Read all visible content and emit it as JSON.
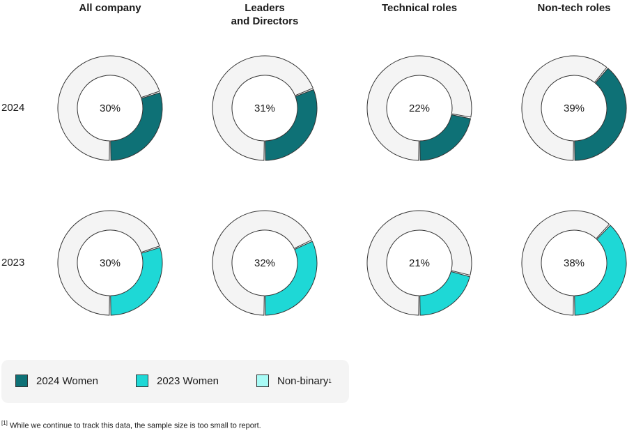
{
  "chart_data": {
    "type": "donut",
    "columns": [
      "All company",
      "Leaders\nand Directors",
      "Technical roles",
      "Non-tech roles"
    ],
    "rows": [
      {
        "label": "2024",
        "series": "2024 Women",
        "values": [
          30,
          31,
          22,
          39
        ]
      },
      {
        "label": "2023",
        "series": "2023 Women",
        "values": [
          30,
          32,
          21,
          38
        ]
      }
    ],
    "unit": "%",
    "legend": [
      {
        "label": "2024 Women",
        "color": "#0e7176"
      },
      {
        "label": "2023 Women",
        "color": "#1ed8d6"
      },
      {
        "label": "Non-binary",
        "sup": "1",
        "color": "#a8fbf6"
      }
    ],
    "remainder_color": "#f4f4f4"
  },
  "footnote": {
    "marker": "[1]",
    "text": " While we continue to track this data, the sample size is too small to report."
  }
}
